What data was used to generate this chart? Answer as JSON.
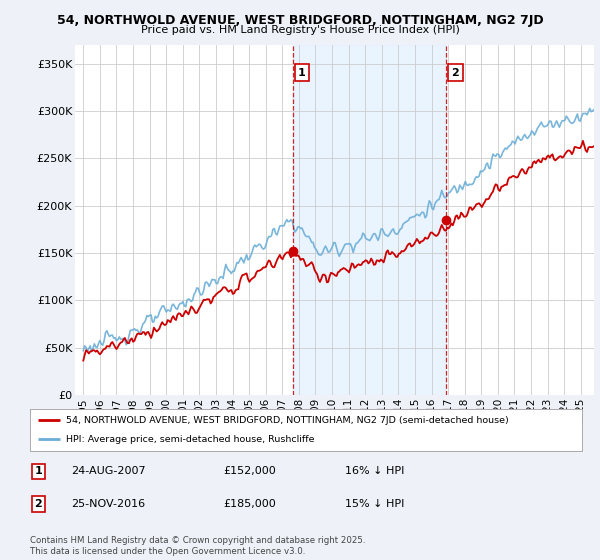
{
  "title_line1": "54, NORTHWOLD AVENUE, WEST BRIDGFORD, NOTTINGHAM, NG2 7JD",
  "title_line2": "Price paid vs. HM Land Registry's House Price Index (HPI)",
  "ylim": [
    0,
    370000
  ],
  "yticks": [
    0,
    50000,
    100000,
    150000,
    200000,
    250000,
    300000,
    350000
  ],
  "ytick_labels": [
    "£0",
    "£50K",
    "£100K",
    "£150K",
    "£200K",
    "£250K",
    "£300K",
    "£350K"
  ],
  "xlim_start": 1994.5,
  "xlim_end": 2025.8,
  "xticks": [
    1995,
    1996,
    1997,
    1998,
    1999,
    2000,
    2001,
    2002,
    2003,
    2004,
    2005,
    2006,
    2007,
    2008,
    2009,
    2010,
    2011,
    2012,
    2013,
    2014,
    2015,
    2016,
    2017,
    2018,
    2019,
    2020,
    2021,
    2022,
    2023,
    2024,
    2025
  ],
  "hpi_color": "#6baed6",
  "price_color": "#cc0000",
  "vline_color": "#cc0000",
  "shade_color": "#ddeeff",
  "sale1_year": 2007.648,
  "sale1_price": 152000,
  "sale2_year": 2016.902,
  "sale2_price": 185000,
  "legend_price_label": "54, NORTHWOLD AVENUE, WEST BRIDGFORD, NOTTINGHAM, NG2 7JD (semi-detached house)",
  "legend_hpi_label": "HPI: Average price, semi-detached house, Rushcliffe",
  "annotation1": "1",
  "annotation2": "2",
  "note1_label": "1",
  "note1_date": "24-AUG-2007",
  "note1_price": "£152,000",
  "note1_hpi": "16% ↓ HPI",
  "note2_label": "2",
  "note2_date": "25-NOV-2016",
  "note2_price": "£185,000",
  "note2_hpi": "15% ↓ HPI",
  "copyright_text": "Contains HM Land Registry data © Crown copyright and database right 2025.\nThis data is licensed under the Open Government Licence v3.0.",
  "bg_color": "#eef2f8",
  "plot_bg_color": "#ffffff",
  "grid_color": "#cccccc"
}
